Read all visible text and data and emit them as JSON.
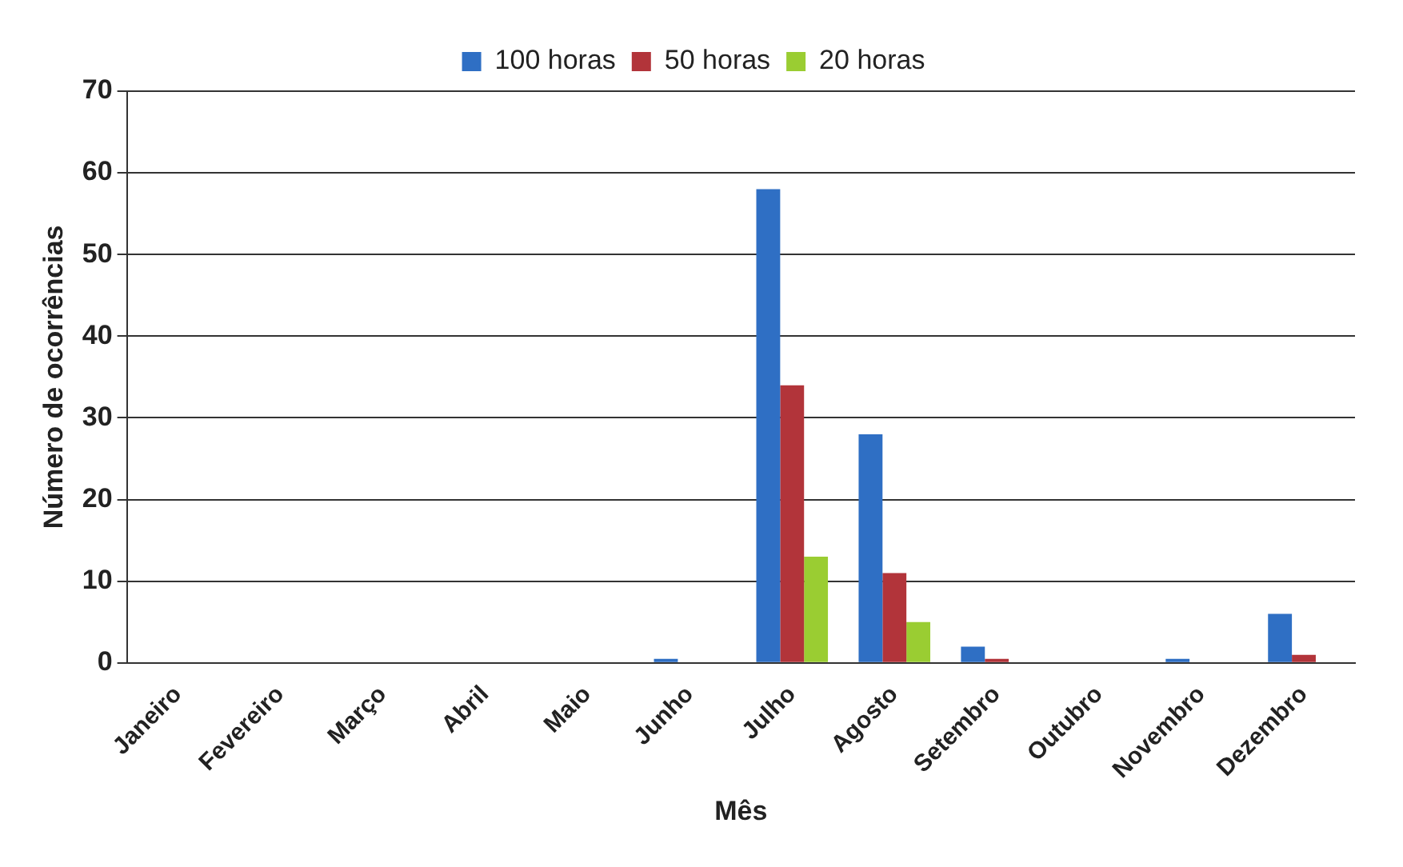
{
  "chart_data": {
    "type": "bar",
    "xlabel": "Mês",
    "ylabel": "Número de ocorrências",
    "categories": [
      "Janeiro",
      "Fevereiro",
      "Março",
      "Abril",
      "Maio",
      "Junho",
      "Julho",
      "Agosto",
      "Setembro",
      "Outubro",
      "Novembro",
      "Dezembro"
    ],
    "series": [
      {
        "name": "100 horas",
        "color": "#2f6fc4",
        "values": [
          0,
          0,
          0,
          0,
          0,
          0.5,
          58,
          28,
          2,
          0,
          0.5,
          6
        ]
      },
      {
        "name": "50 horas",
        "color": "#b2343a",
        "values": [
          0,
          0,
          0,
          0,
          0,
          0,
          34,
          11,
          0.5,
          0,
          0,
          1
        ]
      },
      {
        "name": "20 horas",
        "color": "#9acd32",
        "values": [
          0,
          0,
          0,
          0,
          0,
          0,
          13,
          5,
          0,
          0,
          0,
          0
        ]
      }
    ],
    "ylim": [
      0,
      70
    ],
    "yticks": [
      0,
      10,
      20,
      30,
      40,
      50,
      60,
      70
    ],
    "grid": "y",
    "legend": "top"
  }
}
